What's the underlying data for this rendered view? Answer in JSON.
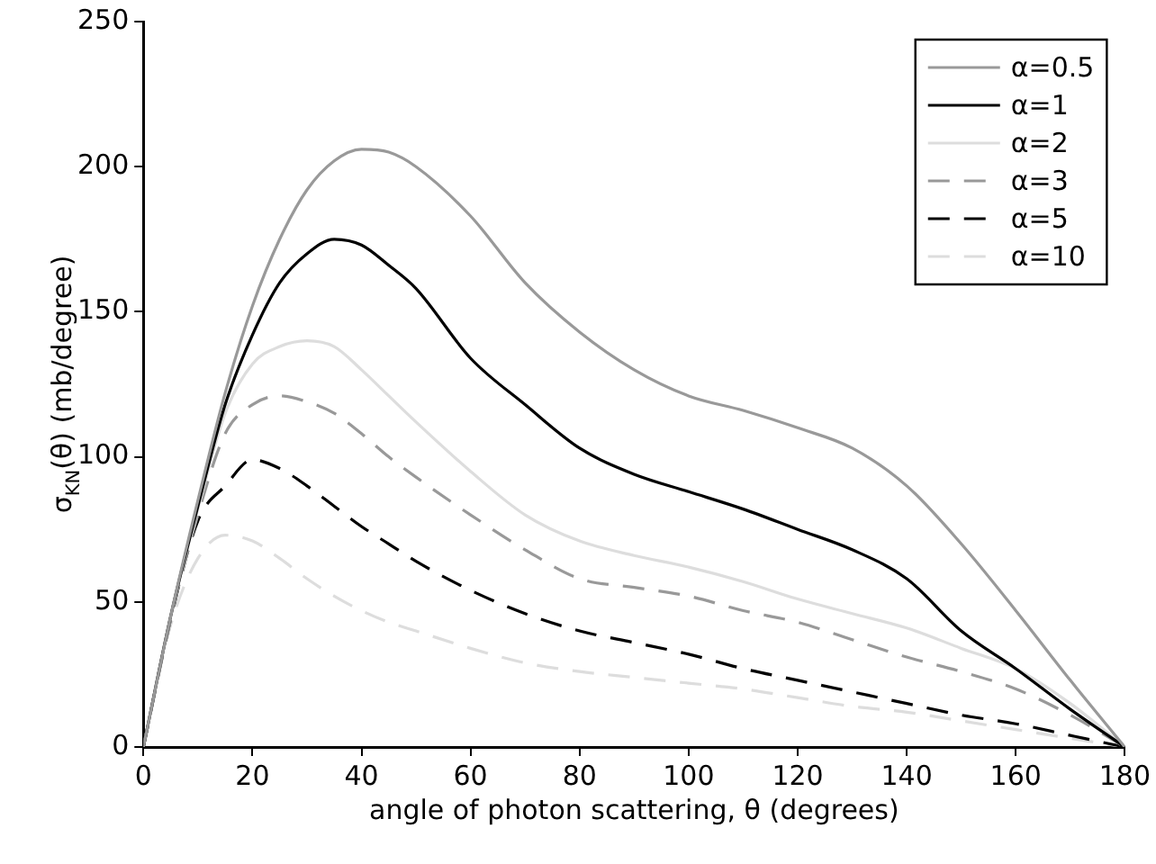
{
  "chart_data": {
    "type": "line",
    "xlabel": "angle of photon scattering, θ (degrees)",
    "ylabel": "σ$_{KN}$(θ) (mb/degree)",
    "x": [
      0,
      5,
      10,
      15,
      20,
      25,
      30,
      35,
      40,
      45,
      50,
      60,
      70,
      80,
      90,
      100,
      110,
      120,
      130,
      140,
      150,
      160,
      170,
      180
    ],
    "series": [
      {
        "name": "α=0.5",
        "color": "#999999",
        "line_style": "solid",
        "values": [
          0,
          45,
          85,
          122,
          152,
          175,
          192,
          202,
          206,
          205,
          200,
          183,
          160,
          143,
          130,
          121,
          116,
          110,
          103,
          90,
          70,
          47,
          23,
          0
        ]
      },
      {
        "name": "α=1",
        "color": "#000000",
        "line_style": "solid",
        "values": [
          0,
          45,
          83,
          118,
          142,
          160,
          170,
          175,
          173,
          166,
          158,
          134,
          118,
          103,
          94,
          88,
          82,
          75,
          68,
          58,
          40,
          27,
          13,
          0
        ]
      },
      {
        "name": "α=2",
        "color": "#dddddd",
        "line_style": "solid",
        "values": [
          0,
          45,
          82,
          115,
          132,
          138,
          140,
          138,
          130,
          121,
          112,
          95,
          80,
          71,
          66,
          62,
          57,
          51,
          46,
          41,
          34,
          27,
          15,
          0
        ]
      },
      {
        "name": "α=3",
        "color": "#999999",
        "line_style": "dashed",
        "values": [
          0,
          44,
          80,
          108,
          118,
          121,
          119,
          115,
          108,
          100,
          93,
          80,
          68,
          58,
          55,
          52,
          47,
          43,
          37,
          31,
          26,
          20,
          11,
          0
        ]
      },
      {
        "name": "α=5",
        "color": "#000000",
        "line_style": "dashed",
        "values": [
          0,
          44,
          78,
          90,
          99,
          96,
          90,
          83,
          76,
          70,
          64,
          54,
          46,
          40,
          36,
          32,
          27,
          23,
          19,
          15,
          11,
          8,
          4,
          0
        ]
      },
      {
        "name": "α=10",
        "color": "#dddddd",
        "line_style": "dashed",
        "values": [
          0,
          42,
          65,
          73,
          71,
          65,
          58,
          52,
          47,
          43,
          40,
          34,
          29,
          26,
          24,
          22,
          20,
          17,
          14,
          12,
          9,
          6,
          3,
          0
        ]
      }
    ],
    "xlim": [
      0,
      180
    ],
    "xticks": [
      0,
      20,
      40,
      60,
      80,
      100,
      120,
      140,
      160,
      180
    ],
    "ylim": [
      0,
      250
    ],
    "yticks": [
      0,
      50,
      100,
      150,
      200,
      250
    ],
    "grid": false,
    "legend": "top right",
    "marker": "none"
  }
}
